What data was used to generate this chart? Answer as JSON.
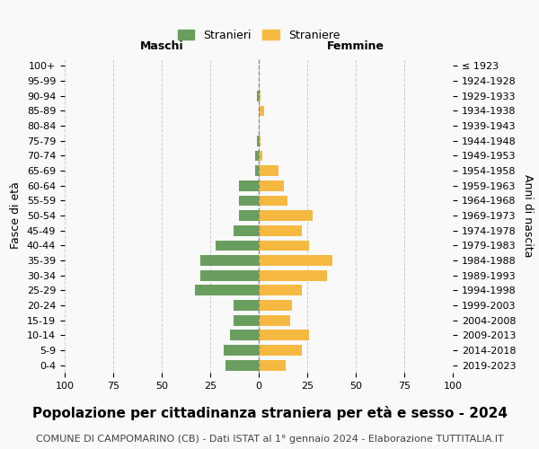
{
  "age_groups": [
    "0-4",
    "5-9",
    "10-14",
    "15-19",
    "20-24",
    "25-29",
    "30-34",
    "35-39",
    "40-44",
    "45-49",
    "50-54",
    "55-59",
    "60-64",
    "65-69",
    "70-74",
    "75-79",
    "80-84",
    "85-89",
    "90-94",
    "95-99",
    "100+"
  ],
  "birth_years": [
    "2019-2023",
    "2014-2018",
    "2009-2013",
    "2004-2008",
    "1999-2003",
    "1994-1998",
    "1989-1993",
    "1984-1988",
    "1979-1983",
    "1974-1978",
    "1969-1973",
    "1964-1968",
    "1959-1963",
    "1954-1958",
    "1949-1953",
    "1944-1948",
    "1939-1943",
    "1934-1938",
    "1929-1933",
    "1924-1928",
    "≤ 1923"
  ],
  "males": [
    17,
    18,
    15,
    13,
    13,
    33,
    30,
    30,
    22,
    13,
    10,
    10,
    10,
    2,
    2,
    1,
    0,
    0,
    1,
    0,
    0
  ],
  "females": [
    14,
    22,
    26,
    16,
    17,
    22,
    35,
    38,
    26,
    22,
    28,
    15,
    13,
    10,
    2,
    1,
    0,
    3,
    1,
    0,
    0
  ],
  "male_color": "#6a9e5f",
  "female_color": "#f5b942",
  "background_color": "#f9f9f9",
  "grid_color": "#cccccc",
  "title": "Popolazione per cittadinanza straniera per età e sesso - 2024",
  "subtitle": "COMUNE DI CAMPOMARINO (CB) - Dati ISTAT al 1° gennaio 2024 - Elaborazione TUTTITALIA.IT",
  "xlabel_left": "Maschi",
  "xlabel_right": "Femmine",
  "ylabel_left": "Fasce di età",
  "ylabel_right": "Anni di nascita",
  "legend_male": "Stranieri",
  "legend_female": "Straniere",
  "xlim": 100,
  "title_fontsize": 11,
  "subtitle_fontsize": 8,
  "axis_label_fontsize": 9,
  "tick_fontsize": 8
}
